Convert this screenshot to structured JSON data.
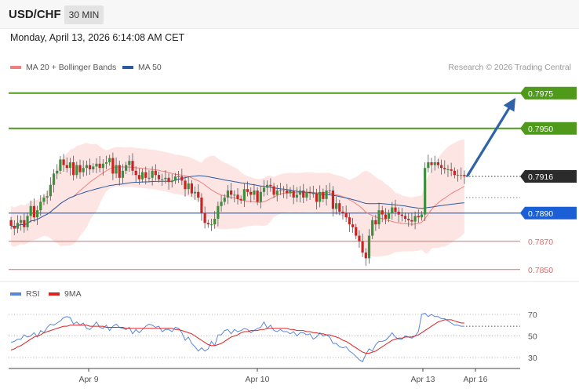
{
  "header": {
    "symbol": "USD/CHF",
    "timeframe": "30 MIN"
  },
  "datetime": "Monday, April 13, 2026 6:14:08 AM CET",
  "legend": {
    "bb_label": "MA 20 + Bollinger Bands",
    "ma50_label": "MA 50",
    "credit": "Research © 2026 Trading Central"
  },
  "rsi_legend": {
    "rsi_label": "RSI",
    "ma_label": "9MA"
  },
  "colors": {
    "bb": "#f08080",
    "ma50": "#2c5aa0",
    "up": "#3e8e3e",
    "down": "#cc2222",
    "resistance": "#4f9a1a",
    "support_blue": "#1a5fd6",
    "support_red": "#e06a6a",
    "arrow": "#2f62a8",
    "rsi": "#5a86d8",
    "rsi_ma": "#dd2222"
  },
  "chart_data": [
    {
      "type": "candlestick",
      "title": "",
      "x_ticks": [
        "Apr 9",
        "Apr 10",
        "Apr 13",
        "Apr 16"
      ],
      "ylim": [
        0.7841,
        0.7991
      ],
      "levels": [
        {
          "label": "0.7975",
          "value": 0.7975,
          "kind": "resistance"
        },
        {
          "label": "0.7950",
          "value": 0.795,
          "kind": "resistance"
        },
        {
          "label": "0.7916",
          "value": 0.7916,
          "kind": "last"
        },
        {
          "label": "0.7890",
          "value": 0.789,
          "kind": "pivot"
        },
        {
          "label": "0.7870",
          "value": 0.787,
          "kind": "support"
        },
        {
          "label": "0.7850",
          "value": 0.785,
          "kind": "support"
        }
      ],
      "projection": {
        "from": 0.7916,
        "to": 0.7975,
        "direction": "up"
      },
      "closes": [
        0.7881,
        0.7879,
        0.7883,
        0.7885,
        0.788,
        0.7888,
        0.7895,
        0.7887,
        0.7892,
        0.7898,
        0.7901,
        0.7902,
        0.791,
        0.7918,
        0.792,
        0.7928,
        0.7924,
        0.7922,
        0.7926,
        0.7917,
        0.7924,
        0.7919,
        0.7922,
        0.7924,
        0.7921,
        0.7923,
        0.7925,
        0.7922,
        0.7925,
        0.7926,
        0.7929,
        0.7918,
        0.7924,
        0.7915,
        0.792,
        0.7924,
        0.7927,
        0.792,
        0.7917,
        0.7914,
        0.7919,
        0.7915,
        0.7915,
        0.792,
        0.7917,
        0.7914,
        0.7914,
        0.7915,
        0.7912,
        0.7913,
        0.7916,
        0.7916,
        0.7913,
        0.7907,
        0.7911,
        0.7904,
        0.7905,
        0.7901,
        0.789,
        0.7883,
        0.7882,
        0.7882,
        0.7886,
        0.7895,
        0.7898,
        0.7901,
        0.7906,
        0.7903,
        0.7903,
        0.79,
        0.7899,
        0.7907,
        0.7905,
        0.7903,
        0.7906,
        0.7898,
        0.7905,
        0.7908,
        0.791,
        0.7909,
        0.7903,
        0.7906,
        0.7906,
        0.7906,
        0.7904,
        0.7906,
        0.7901,
        0.7903,
        0.7906,
        0.7901,
        0.7905,
        0.7904,
        0.7904,
        0.7898,
        0.7905,
        0.79,
        0.7906,
        0.7906,
        0.7893,
        0.7897,
        0.7891,
        0.789,
        0.7887,
        0.7882,
        0.788,
        0.7874,
        0.787,
        0.7862,
        0.7858,
        0.7874,
        0.7885,
        0.7882,
        0.7892,
        0.7889,
        0.7886,
        0.789,
        0.7894,
        0.7891,
        0.7889,
        0.7888,
        0.7886,
        0.7885,
        0.7884,
        0.7888,
        0.7887,
        0.7889,
        0.7922,
        0.7926,
        0.7924,
        0.7926,
        0.7924,
        0.7922,
        0.7921,
        0.7921,
        0.792,
        0.7917,
        0.7917,
        0.7917,
        0.7916
      ],
      "open_first": 0.7885,
      "range_pad": 0.0006
    },
    {
      "type": "line",
      "title": "RSI",
      "yticks": [
        30,
        50,
        70
      ],
      "ylim": [
        22,
        78
      ],
      "series": [
        {
          "name": "RSI",
          "values": [
            44,
            45,
            47,
            47,
            51,
            49,
            50,
            53,
            49,
            55,
            53,
            58,
            61,
            60,
            62,
            64,
            67,
            68,
            67,
            61,
            63,
            60,
            62,
            57,
            56,
            59,
            63,
            58,
            57,
            60,
            55,
            59,
            61,
            58,
            57,
            56,
            58,
            52,
            56,
            53,
            56,
            59,
            61,
            60,
            58,
            59,
            54,
            56,
            56,
            54,
            58,
            57,
            53,
            46,
            49,
            43,
            40,
            36,
            39,
            36,
            38,
            45,
            41,
            51,
            51,
            55,
            56,
            52,
            56,
            54,
            55,
            57,
            56,
            53,
            55,
            57,
            58,
            63,
            57,
            60,
            55,
            54,
            56,
            54,
            54,
            52,
            54,
            50,
            53,
            53,
            51,
            52,
            47,
            49,
            53,
            50,
            51,
            49,
            43,
            43,
            40,
            39,
            40,
            36,
            34,
            31,
            28,
            26,
            33,
            38,
            36,
            42,
            45,
            45,
            46,
            49,
            53,
            49,
            47,
            47,
            50,
            49,
            48,
            50,
            54,
            70,
            71,
            68,
            70,
            68,
            68,
            66,
            66,
            64,
            62,
            60,
            60,
            59,
            59
          ]
        },
        {
          "name": "9MA",
          "values": [
            37,
            38,
            40,
            41,
            43,
            45,
            47,
            49,
            50,
            51,
            53,
            54,
            55,
            56,
            57,
            58,
            59,
            59,
            60,
            60,
            60,
            60,
            60,
            60,
            59,
            59,
            59,
            59,
            59,
            58,
            58,
            58,
            58,
            58,
            58,
            57,
            57,
            57,
            57,
            57,
            57,
            57,
            57,
            57,
            57,
            57,
            57,
            57,
            57,
            57,
            56,
            56,
            55,
            54,
            53,
            52,
            50,
            48,
            46,
            44,
            42,
            41,
            41,
            42,
            43,
            45,
            47,
            49,
            50,
            51,
            53,
            54,
            54,
            55,
            55,
            55,
            56,
            56,
            57,
            57,
            57,
            57,
            57,
            57,
            57,
            56,
            56,
            55,
            55,
            55,
            54,
            54,
            53,
            53,
            52,
            52,
            51,
            51,
            50,
            49,
            48,
            46,
            45,
            43,
            41,
            39,
            37,
            35,
            34,
            34,
            35,
            36,
            38,
            40,
            42,
            44,
            46,
            47,
            48,
            48,
            49,
            49,
            49,
            50,
            51,
            53,
            55,
            57,
            59,
            61,
            63,
            64,
            65,
            65,
            65,
            64,
            63,
            62,
            62
          ]
        }
      ]
    }
  ]
}
